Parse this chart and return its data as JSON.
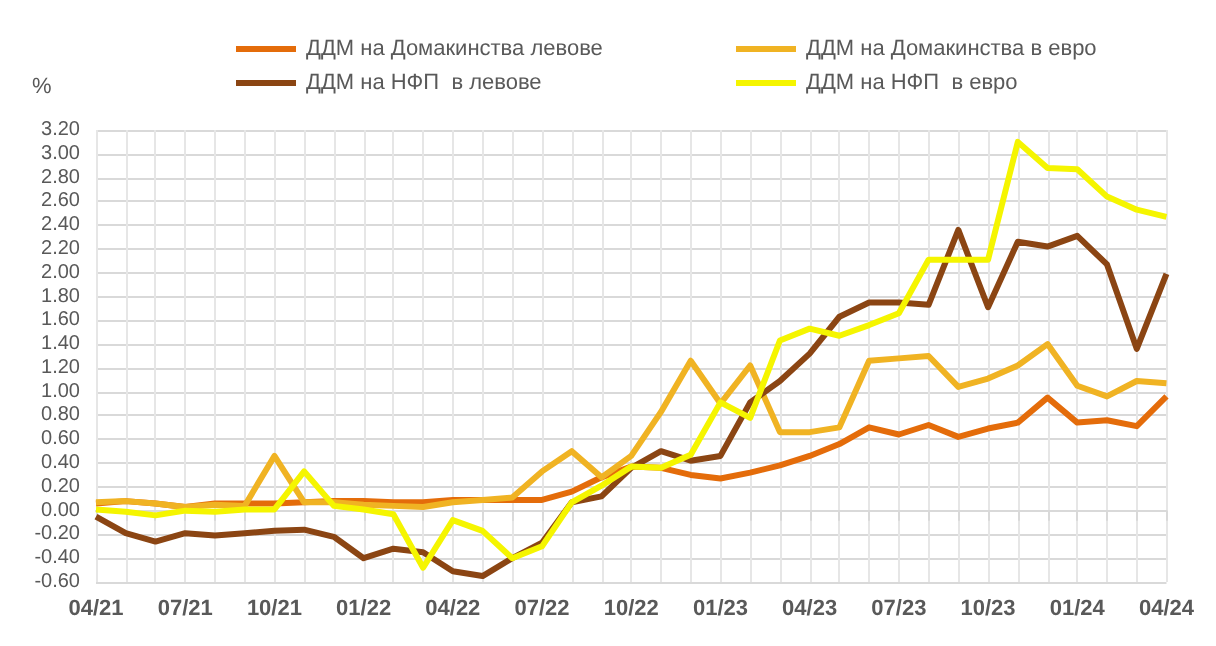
{
  "chart_data": {
    "type": "line",
    "ylabel": "%",
    "categories": [
      "04/21",
      null,
      null,
      "07/21",
      null,
      null,
      "10/21",
      null,
      null,
      "01/22",
      null,
      null,
      "04/22",
      null,
      null,
      "07/22",
      null,
      null,
      "10/22",
      null,
      null,
      "01/23",
      null,
      null,
      "04/23",
      null,
      null,
      "07/23",
      null,
      null,
      "10/23",
      null,
      null,
      "01/24",
      null,
      null,
      "04/24"
    ],
    "series": [
      {
        "name": "ДДМ на Домакинства левове",
        "color": "#e46c0a",
        "values": [
          0.06,
          0.08,
          0.06,
          0.03,
          0.06,
          0.06,
          0.06,
          0.07,
          0.08,
          0.08,
          0.07,
          0.07,
          0.09,
          0.09,
          0.09,
          0.09,
          0.16,
          0.28,
          0.37,
          0.36,
          0.3,
          0.27,
          0.32,
          0.38,
          0.46,
          0.56,
          0.7,
          0.64,
          0.72,
          0.62,
          0.69,
          0.74,
          0.95,
          0.74,
          0.76,
          0.71,
          0.96
        ]
      },
      {
        "name": "ДДМ на Домакинства в евро",
        "color": "#f0b323",
        "values": [
          0.07,
          0.08,
          0.06,
          0.03,
          0.05,
          0.04,
          0.46,
          0.07,
          0.07,
          0.05,
          0.04,
          0.03,
          0.07,
          0.09,
          0.11,
          0.33,
          0.5,
          0.28,
          0.46,
          0.83,
          1.26,
          0.9,
          1.22,
          0.66,
          0.66,
          0.7,
          1.26,
          1.28,
          1.3,
          1.04,
          1.11,
          1.22,
          1.4,
          1.05,
          0.96,
          1.09,
          1.07
        ]
      },
      {
        "name": "ДДМ на НФП  в левове",
        "color": "#8b4513",
        "values": [
          -0.05,
          -0.19,
          -0.26,
          -0.19,
          -0.21,
          -0.19,
          -0.17,
          -0.16,
          -0.22,
          -0.4,
          -0.32,
          -0.35,
          -0.51,
          -0.55,
          -0.4,
          -0.27,
          0.07,
          0.12,
          0.36,
          0.5,
          0.42,
          0.46,
          0.91,
          1.09,
          1.32,
          1.63,
          1.75,
          1.75,
          1.73,
          2.36,
          1.71,
          2.26,
          2.22,
          2.31,
          2.07,
          1.36,
          1.99
        ]
      },
      {
        "name": "ДДМ на НФП  в евро",
        "color": "#f5f500",
        "values": [
          0.01,
          -0.01,
          -0.04,
          0.0,
          -0.01,
          0.01,
          0.01,
          0.33,
          0.04,
          0.01,
          -0.03,
          -0.48,
          -0.08,
          -0.17,
          -0.4,
          -0.3,
          0.07,
          0.21,
          0.37,
          0.36,
          0.47,
          0.91,
          0.78,
          1.43,
          1.53,
          1.47,
          1.56,
          1.66,
          2.11,
          2.11,
          2.11,
          3.1,
          2.88,
          2.87,
          2.64,
          2.53,
          2.47
        ]
      }
    ],
    "ylim": [
      -0.6,
      3.2
    ],
    "yticks": [
      {
        "value": -0.6,
        "label": "-0.60"
      },
      {
        "value": -0.4,
        "label": "-0.40"
      },
      {
        "value": -0.2,
        "label": "-0.20"
      },
      {
        "value": 0,
        "label": "0.00"
      },
      {
        "value": 0.2,
        "label": "0.20"
      },
      {
        "value": 0.4,
        "label": "0.40"
      },
      {
        "value": 0.6,
        "label": "0.60"
      },
      {
        "value": 0.8,
        "label": "0.80"
      },
      {
        "value": 1.0,
        "label": "1.00"
      },
      {
        "value": 1.2,
        "label": "1.20"
      },
      {
        "value": 1.4,
        "label": "1.40"
      },
      {
        "value": 1.6,
        "label": "1.60"
      },
      {
        "value": 1.8,
        "label": "1.80"
      },
      {
        "value": 2.0,
        "label": "2.00"
      },
      {
        "value": 2.2,
        "label": "2.20"
      },
      {
        "value": 2.4,
        "label": "2.40"
      },
      {
        "value": 2.6,
        "label": "2.60"
      },
      {
        "value": 2.8,
        "label": "2.80"
      },
      {
        "value": 3.0,
        "label": "3.00"
      },
      {
        "value": 3.2,
        "label": "3.20"
      }
    ],
    "grid": true,
    "legend": "top",
    "marker": "none",
    "line_style": "solid"
  }
}
